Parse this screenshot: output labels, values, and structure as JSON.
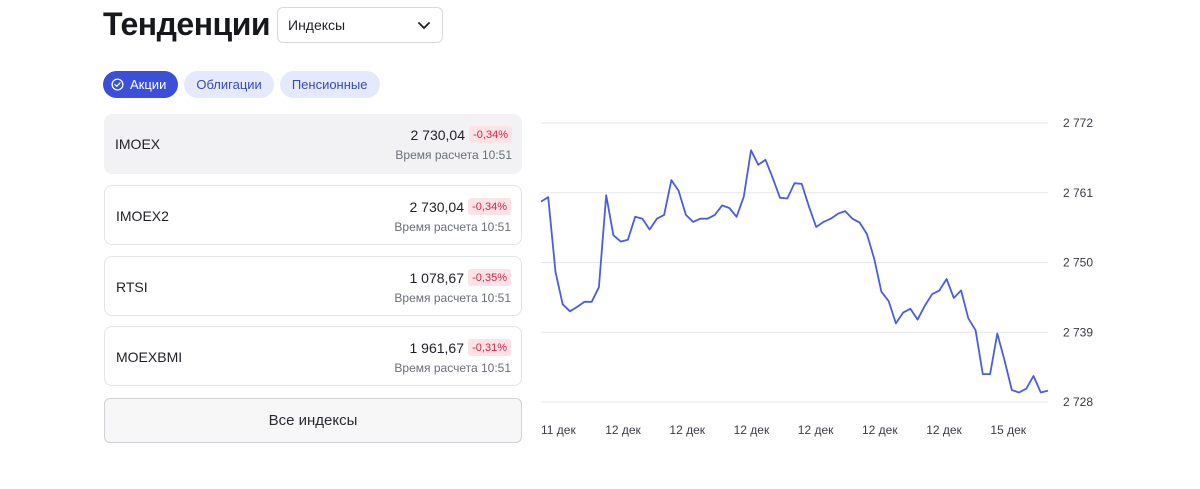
{
  "header": {
    "title": "Тенденции",
    "select_value": "Индексы"
  },
  "chips": [
    {
      "label": "Акции",
      "active": true
    },
    {
      "label": "Облигации",
      "active": false
    },
    {
      "label": "Пенсионные",
      "active": false
    }
  ],
  "indices": [
    {
      "name": "IMOEX",
      "value": "2 730,04",
      "change": "-0,34%",
      "time": "Время расчета 10:51"
    },
    {
      "name": "IMOEX2",
      "value": "2 730,04",
      "change": "-0,34%",
      "time": "Время расчета 10:51"
    },
    {
      "name": "RTSI",
      "value": "1 078,67",
      "change": "-0,35%",
      "time": "Время расчета 10:51"
    },
    {
      "name": "MOEXBMI",
      "value": "1 961,67",
      "change": "-0,31%",
      "time": "Время расчета 10:51"
    }
  ],
  "all_indices_label": "Все индексы",
  "colors": {
    "accent": "#3b4fd8",
    "line": "#4a5de0",
    "negative": "#d0254a",
    "negative_bg": "#fde2e6"
  },
  "chart_data": {
    "type": "line",
    "x_tick_labels": [
      "11 дек",
      "12 дек",
      "12 дек",
      "12 дек",
      "12 дек",
      "12 дек",
      "12 дек",
      "15 дек"
    ],
    "y_tick_labels": [
      "2 772",
      "2 761",
      "2 750",
      "2 739",
      "2 728"
    ],
    "y_ticks": [
      2772,
      2761,
      2750,
      2739,
      2728
    ],
    "ylim": [
      2728,
      2772
    ],
    "grid": true,
    "series": [
      {
        "values": [
          2759.6,
          2760.3,
          2748.5,
          2743.4,
          2742.3,
          2743.0,
          2743.8,
          2743.8,
          2746.1,
          2760.6,
          2754.3,
          2753.3,
          2753.6,
          2757.2,
          2756.9,
          2755.2,
          2756.9,
          2757.5,
          2763.0,
          2761.3,
          2757.5,
          2756.4,
          2756.9,
          2756.9,
          2757.5,
          2759.0,
          2758.6,
          2757.2,
          2760.4,
          2767.7,
          2765.4,
          2766.2,
          2763.3,
          2760.2,
          2760.1,
          2762.5,
          2762.4,
          2758.8,
          2755.6,
          2756.4,
          2756.9,
          2757.7,
          2758.1,
          2756.9,
          2756.3,
          2754.5,
          2750.6,
          2745.4,
          2743.9,
          2740.4,
          2742.1,
          2742.7,
          2741.0,
          2743.2,
          2745.0,
          2745.6,
          2747.4,
          2744.4,
          2745.6,
          2741.2,
          2739.3,
          2732.4,
          2732.4,
          2738.8,
          2734.6,
          2729.9,
          2729.5,
          2730.1,
          2732.1,
          2729.5,
          2729.8
        ]
      }
    ]
  }
}
